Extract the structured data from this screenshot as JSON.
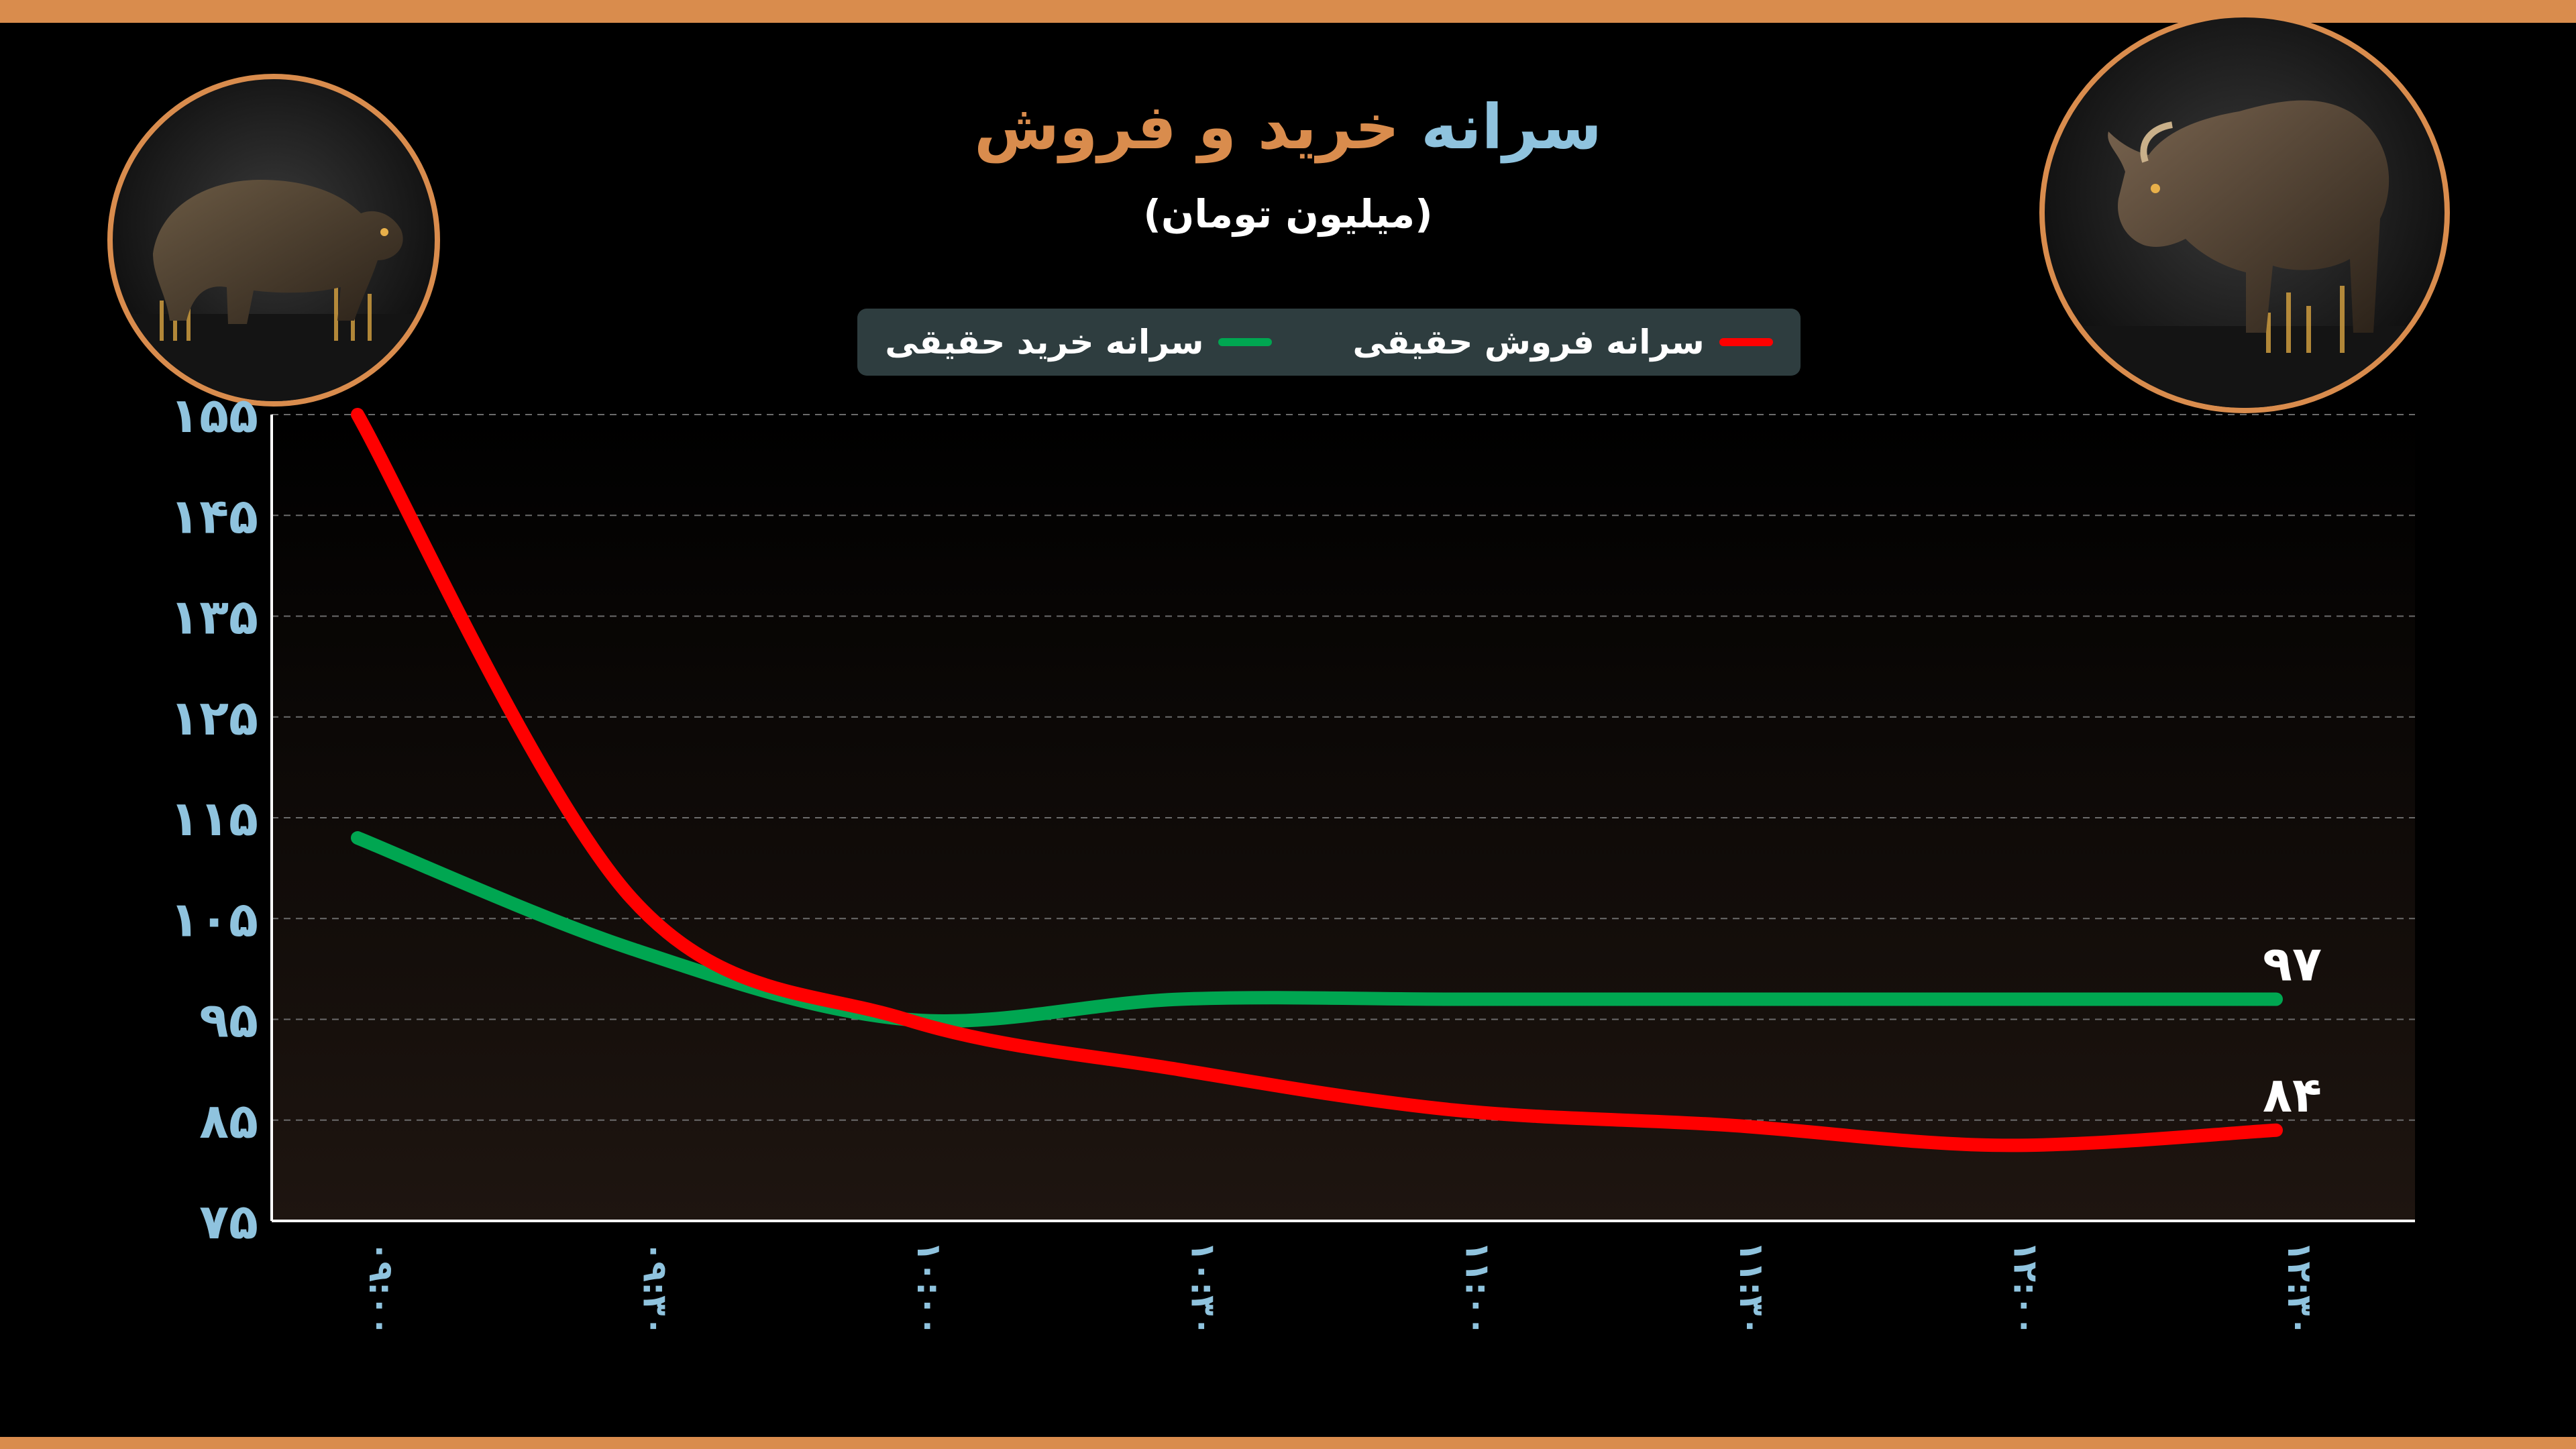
{
  "title": {
    "part1": "سرانه",
    "part2": "خرید و فروش"
  },
  "subtitle": "(میلیون تومان)",
  "colors": {
    "accent": "#d98c4d",
    "axis_text": "#8fc3de",
    "legend_bg": "#2e3d3f",
    "buy": "#00a651",
    "sell": "#ff0000"
  },
  "images": {
    "left": "bear-figure",
    "right": "bull-figure"
  },
  "chart_data": {
    "type": "line",
    "title": "سرانه خرید و فروش",
    "ylabel": "(میلیون تومان)",
    "xlabel": "",
    "ylim": [
      75,
      155
    ],
    "yticks": [
      "۱۵۵",
      "۱۴۵",
      "۱۳۵",
      "۱۲۵",
      "۱۱۵",
      "۱۰۵",
      "۹۵",
      "۸۵",
      "۷۵"
    ],
    "ytick_values": [
      155,
      145,
      135,
      125,
      115,
      105,
      95,
      85,
      75
    ],
    "categories": [
      "۰۹:۰۰",
      "۰۹:۳۰",
      "۱۰:۰۰",
      "۱۰:۳۰",
      "۱۱:۰۰",
      "۱۱:۳۰",
      "۱۲:۰۰",
      "۱۲:۳۰"
    ],
    "legend_position": "top-center",
    "grid": true,
    "series": [
      {
        "name": "سرانه فروش حقیقی",
        "color": "#ff0000",
        "values": [
          155,
          107,
          95,
          90,
          86,
          84.5,
          82.5,
          84
        ],
        "end_label": "۸۴"
      },
      {
        "name": "سرانه خرید حقیقی",
        "color": "#00a651",
        "values": [
          113,
          102,
          95,
          97,
          97,
          97,
          97,
          97
        ],
        "end_label": "۹۷"
      }
    ]
  }
}
